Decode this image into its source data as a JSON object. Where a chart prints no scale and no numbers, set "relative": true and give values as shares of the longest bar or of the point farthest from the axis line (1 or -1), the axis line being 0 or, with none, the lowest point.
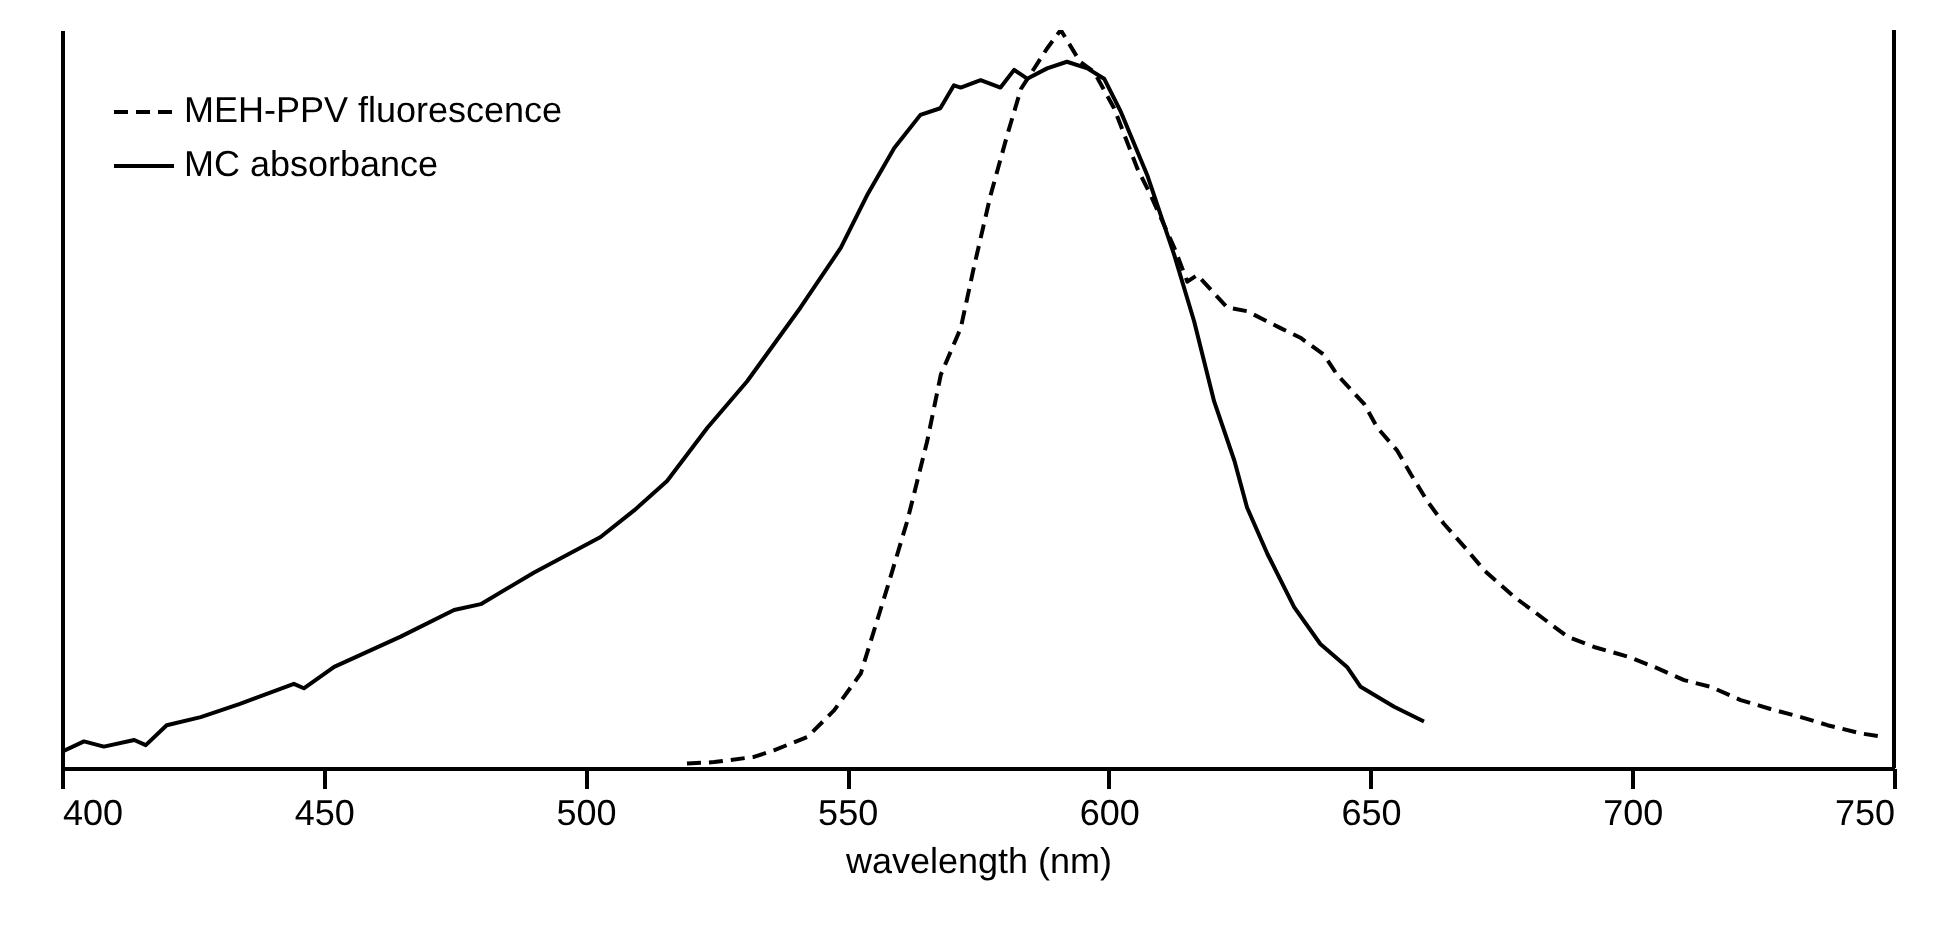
{
  "chart_data": {
    "type": "line",
    "xlabel": "wavelength (nm)",
    "relative": true,
    "legend": "top left",
    "grid": false,
    "xlim": [
      400,
      750
    ],
    "xticks": [
      400,
      450,
      500,
      550,
      600,
      650,
      700,
      750
    ],
    "series": [
      {
        "name": "MEH-PPV fluorescence",
        "color": "#000000",
        "line_style": "dashed",
        "x": [
          519.4,
          524.6,
          532.2,
          536,
          542.4,
          547.5,
          552.6,
          557.7,
          561.5,
          565.3,
          567.9,
          571.7,
          574.2,
          577.4,
          580.6,
          583.2,
          588.2,
          590.8,
          594.5,
          597.2,
          601,
          605.4,
          608,
          612.5,
          615,
          616.9,
          622.6,
          626.4,
          632.8,
          636.6,
          641.1,
          643.6,
          648.8,
          651.3,
          655.1,
          657.7,
          660.8,
          664,
          668.5,
          671.7,
          677.4,
          681.8,
          687.6,
          692.7,
          699.1,
          704.2,
          709.9,
          715,
          720.7,
          726.4,
          732.2,
          737.3,
          743.6,
          748.1
        ],
        "values": [
          0.006,
          0.008,
          0.015,
          0.024,
          0.042,
          0.078,
          0.128,
          0.245,
          0.335,
          0.443,
          0.533,
          0.596,
          0.678,
          0.776,
          0.858,
          0.92,
          0.975,
          1.0,
          0.957,
          0.943,
          0.894,
          0.813,
          0.776,
          0.705,
          0.659,
          0.668,
          0.624,
          0.619,
          0.596,
          0.583,
          0.56,
          0.533,
          0.493,
          0.461,
          0.43,
          0.398,
          0.362,
          0.331,
          0.295,
          0.268,
          0.232,
          0.209,
          0.178,
          0.164,
          0.151,
          0.137,
          0.119,
          0.11,
          0.092,
          0.08,
          0.069,
          0.058,
          0.047,
          0.042
        ]
      },
      {
        "name": "MC absorbance",
        "color": "#000000",
        "line_style": "solid",
        "x": [
          400,
          404.2,
          408,
          413.8,
          416,
          420,
          426.5,
          434,
          444.3,
          446.2,
          452,
          464.7,
          474.9,
          480,
          490.2,
          502.9,
          509.3,
          515.6,
          523.3,
          530.9,
          541.1,
          548.8,
          553.8,
          559,
          564,
          567.8,
          570.4,
          571.7,
          575.5,
          579.3,
          581.9,
          584.4,
          588.2,
          592,
          595.9,
          599.1,
          602.3,
          607.3,
          612.5,
          616.3,
          620.1,
          624,
          626.4,
          630.3,
          635.4,
          640.4,
          645.5,
          648.1,
          654.5,
          660.2
        ],
        "values": [
          0.022,
          0.036,
          0.029,
          0.038,
          0.031,
          0.058,
          0.069,
          0.087,
          0.114,
          0.108,
          0.137,
          0.178,
          0.214,
          0.222,
          0.265,
          0.313,
          0.349,
          0.389,
          0.461,
          0.524,
          0.624,
          0.705,
          0.776,
          0.84,
          0.885,
          0.894,
          0.925,
          0.922,
          0.932,
          0.922,
          0.946,
          0.934,
          0.948,
          0.957,
          0.948,
          0.934,
          0.889,
          0.804,
          0.695,
          0.605,
          0.497,
          0.416,
          0.353,
          0.29,
          0.218,
          0.168,
          0.137,
          0.11,
          0.083,
          0.063
        ]
      }
    ]
  }
}
